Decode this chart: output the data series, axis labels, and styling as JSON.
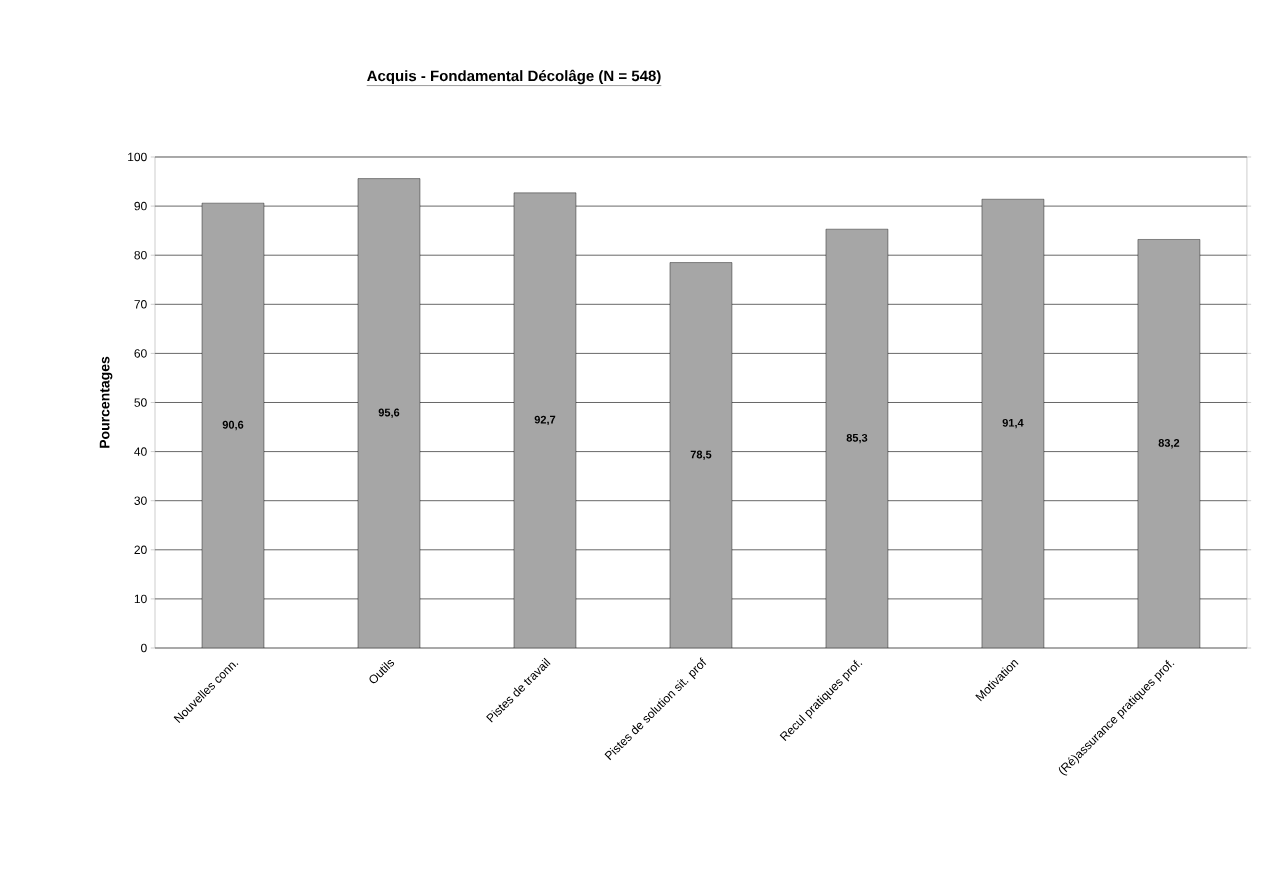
{
  "chart_data": {
    "type": "bar",
    "title": "Acquis - Fondamental Décolâge (N = 548)",
    "ylabel": "Pourcentages",
    "categories": [
      "Nouvelles conn.",
      "Outils",
      "Pistes de travail",
      "Pistes de solution sit. prof",
      "Recul pratiques prof.",
      "Motivation",
      "(Ré)assurance pratiques prof."
    ],
    "values": [
      90.6,
      95.6,
      92.7,
      78.5,
      85.3,
      91.4,
      83.2
    ],
    "value_labels": [
      "90,6",
      "95,6",
      "92,7",
      "78,5",
      "85,3",
      "91,4",
      "83,2"
    ],
    "color": "#a6a6a6",
    "ylim": [
      0,
      100
    ],
    "yticks": [
      0,
      10,
      20,
      30,
      40,
      50,
      60,
      70,
      80,
      90,
      100
    ],
    "grid": "y"
  }
}
